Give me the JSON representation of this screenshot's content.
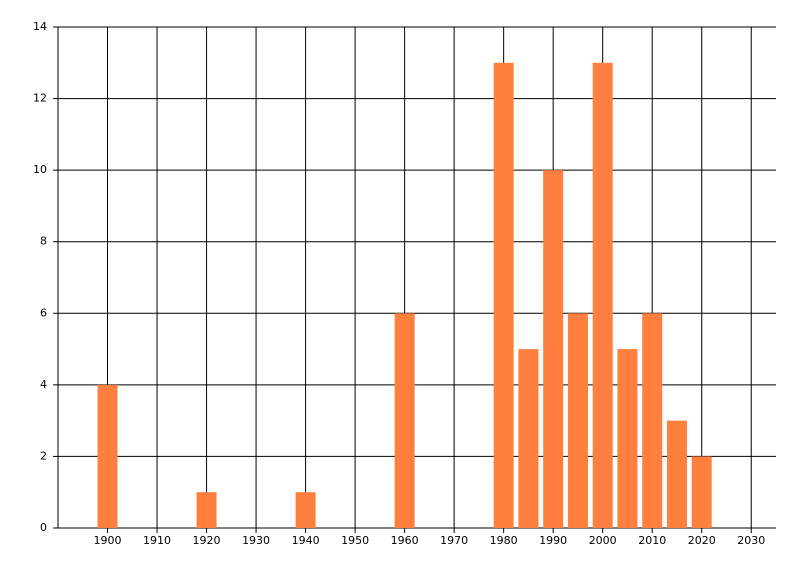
{
  "chart_data": {
    "type": "bar",
    "x": [
      1900,
      1920,
      1940,
      1960,
      1980,
      1985,
      1990,
      1995,
      2000,
      2005,
      2010,
      2015,
      2020
    ],
    "values": [
      4,
      1,
      1,
      6,
      13,
      5,
      10,
      6,
      13,
      5,
      6,
      3,
      2
    ],
    "color": "#ff7f3f",
    "xlim": [
      1890,
      2035
    ],
    "xticks": [
      1900,
      1910,
      1920,
      1930,
      1940,
      1950,
      1960,
      1970,
      1980,
      1990,
      2000,
      2010,
      2020,
      2030
    ],
    "ylim": [
      0,
      14
    ],
    "yticks": [
      0,
      2,
      4,
      6,
      8,
      10,
      12,
      14
    ],
    "grid": true
  }
}
